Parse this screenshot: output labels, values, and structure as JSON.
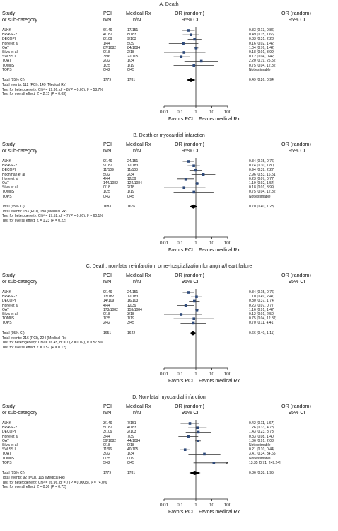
{
  "chart_data": [
    {
      "type": "forest",
      "title": "A. Death",
      "header": {
        "study": "Study",
        "subcat": "or sub-category",
        "pci": "PCI",
        "pci_n": "n/N",
        "med": "Medical Rx",
        "med_n": "n/N",
        "or": "OR (random)",
        "or_ci": "95% CI",
        "or2": "OR (random)",
        "or2_ci": "95% CI"
      },
      "studies": [
        {
          "name": "ALKK",
          "pci": "6/149",
          "med": "17/151",
          "or": 0.33,
          "lo": 0.13,
          "hi": 0.86,
          "text": "0.33 [0.13, 0.86]"
        },
        {
          "name": "BRAVE-2",
          "pci": "4/182",
          "med": "8/183",
          "or": 0.49,
          "lo": 0.15,
          "hi": 1.66,
          "text": "0.49 [0.15, 1.66]"
        },
        {
          "name": "DECOPI",
          "pci": "8/109",
          "med": "9/103",
          "or": 0.83,
          "lo": 0.31,
          "hi": 2.23,
          "text": "0.83 [0.31, 2.23]"
        },
        {
          "name": "Horie et al",
          "pci": "1/44",
          "med": "5/39",
          "or": 0.16,
          "lo": 0.02,
          "hi": 1.42,
          "text": "0.16 [0.02, 1.42]"
        },
        {
          "name": "OAT",
          "pci": "87/1082",
          "med": "84/1084",
          "or": 1.04,
          "lo": 0.76,
          "hi": 1.42,
          "text": "1.04 [0.76, 1.42]"
        },
        {
          "name": "Silva et al",
          "pci": "0/18",
          "med": "2/18",
          "or": 0.18,
          "lo": 0.01,
          "hi": 3.99,
          "text": "0.18 [0.01, 3.99]"
        },
        {
          "name": "SWISS II",
          "pci": "3/96",
          "med": "22/105",
          "or": 0.12,
          "lo": 0.04,
          "hi": 0.42,
          "text": "0.12 [0.04, 0.42]"
        },
        {
          "name": "TOAT",
          "pci": "2/32",
          "med": "1/34",
          "or": 2.2,
          "lo": 0.19,
          "hi": 25.52,
          "text": "2.20 [0.19, 25.52]"
        },
        {
          "name": "TOMIIS",
          "pci": "1/25",
          "med": "1/19",
          "or": 0.75,
          "lo": 0.04,
          "hi": 12.82,
          "text": "0.75 [0.04, 12.82]"
        },
        {
          "name": "TOPS",
          "pci": "0/42",
          "med": "0/45",
          "or": null,
          "lo": null,
          "hi": null,
          "text": "Not estimable"
        }
      ],
      "total": {
        "label": "Total (95% CI)",
        "pci": "1779",
        "med": "1781",
        "or": 0.49,
        "lo": 0.26,
        "hi": 0.94,
        "text": "0.49 [0.26, 0.94]"
      },
      "events": "Total events: 112 (PCI), 149 (Medical Rx)",
      "heterogeneity": "Test for heterogeneity: Chi² = 19.36, df = 8 (P = 0.01), I² = 58.7%",
      "overall": "Test for overall effect: Z = 2.15 (P = 0.03)",
      "xticks": [
        "0.01",
        "0.1",
        "1",
        "10",
        "100"
      ],
      "xtick_values": [
        0.01,
        0.1,
        1,
        10,
        100
      ],
      "favors_left": "Favors PCI",
      "favors_right": "Favors medical Rx",
      "xscale": "log",
      "xlim": [
        0.01,
        100
      ]
    },
    {
      "type": "forest",
      "title": "B. Death or myocardial infarction",
      "header": {
        "study": "Study",
        "subcat": "or sub-category",
        "pci": "PCI",
        "pci_n": "n/N",
        "med": "Medical Rx",
        "med_n": "n/N",
        "or": "OR (random)",
        "or_ci": "95% CI",
        "or2": "OR (random)",
        "or2_ci": "95% CI"
      },
      "studies": [
        {
          "name": "ALKK",
          "pci": "9/149",
          "med": "24/151",
          "or": 0.34,
          "lo": 0.15,
          "hi": 0.76,
          "text": "0.34 [0.15, 0.76]"
        },
        {
          "name": "BRAVE-2",
          "pci": "9/182",
          "med": "12/183",
          "or": 0.74,
          "lo": 0.3,
          "hi": 1.8,
          "text": "0.74 [0.30, 1.80]"
        },
        {
          "name": "DECOPI",
          "pci": "11/109",
          "med": "11/103",
          "or": 0.94,
          "lo": 0.39,
          "hi": 2.27,
          "text": "0.94 [0.39, 2.27]"
        },
        {
          "name": "Hochman et al",
          "pci": "5/32",
          "med": "2/34",
          "or": 2.96,
          "lo": 0.53,
          "hi": 16.51,
          "text": "2.96 [0.53, 16.51]"
        },
        {
          "name": "Horie et al",
          "pci": "4/44",
          "med": "12/39",
          "or": 0.23,
          "lo": 0.07,
          "hi": 0.77,
          "text": "0.23 [0.07, 0.77]"
        },
        {
          "name": "OAT",
          "pci": "144/1082",
          "med": "124/1084",
          "or": 1.19,
          "lo": 0.92,
          "hi": 1.54,
          "text": "1.19 [0.92, 1.54]"
        },
        {
          "name": "Silva et al",
          "pci": "0/18",
          "med": "2/18",
          "or": 0.18,
          "lo": 0.01,
          "hi": 3.99,
          "text": "0.18 [0.01, 3.99]"
        },
        {
          "name": "TOMIIS",
          "pci": "1/25",
          "med": "1/19",
          "or": 0.75,
          "lo": 0.04,
          "hi": 12.82,
          "text": "0.75 [0.04, 12.82]"
        },
        {
          "name": "TOPS",
          "pci": "0/42",
          "med": "0/45",
          "or": null,
          "lo": null,
          "hi": null,
          "text": "Not estimable"
        }
      ],
      "total": {
        "label": "Total (95% CI)",
        "pci": "1683",
        "med": "1676",
        "or": 0.7,
        "lo": 0.4,
        "hi": 1.23,
        "text": "0.70 [0.40, 1.23]"
      },
      "events": "Total events: 183 (PCI), 188 (Medical Rx)",
      "heterogeneity": "Test for heterogeneity: Chi² = 17.52, df = 7 (P = 0.01), I² = 60.1%",
      "overall": "Test for overall effect: Z = 1.23 (P = 0.22)",
      "xticks": [
        "0.01",
        "0.1",
        "1",
        "10",
        "100"
      ],
      "xtick_values": [
        0.01,
        0.1,
        1,
        10,
        100
      ],
      "favors_left": "Favors PCI",
      "favors_right": "Favors medical Rx",
      "xscale": "log",
      "xlim": [
        0.01,
        100
      ]
    },
    {
      "type": "forest",
      "title": "C. Death, non-fatal re-infarction, or re-hospitalization for angina/heart failure",
      "header": {
        "study": "Study",
        "subcat": "or sub-category",
        "pci": "PCI",
        "pci_n": "n/N",
        "med": "Medical Rx",
        "med_n": "n/N",
        "or": "OR (random)",
        "or_ci": "95% CI",
        "or2": "OR (random)",
        "or2_ci": "95% CI"
      },
      "studies": [
        {
          "name": "ALKK",
          "pci": "9/149",
          "med": "24/151",
          "or": 0.34,
          "lo": 0.15,
          "hi": 0.76,
          "text": "0.34 [0.15, 0.76]"
        },
        {
          "name": "BRAVE-2",
          "pci": "13/182",
          "med": "12/183",
          "or": 1.1,
          "lo": 0.49,
          "hi": 2.47,
          "text": "1.10 [0.49, 2.47]"
        },
        {
          "name": "DECOPI",
          "pci": "14/109",
          "med": "16/103",
          "or": 0.8,
          "lo": 0.37,
          "hi": 1.74,
          "text": "0.80 [0.37, 1.74]"
        },
        {
          "name": "Horie et al",
          "pci": "4/44",
          "med": "12/39",
          "or": 0.23,
          "lo": 0.07,
          "hi": 0.77,
          "text": "0.23 [0.07, 0.77]"
        },
        {
          "name": "OAT",
          "pci": "173/1082",
          "med": "153/1084",
          "or": 1.16,
          "lo": 0.91,
          "hi": 1.47,
          "text": "1.16 [0.91, 1.47]"
        },
        {
          "name": "Silva et al",
          "pci": "0/18",
          "med": "3/18",
          "or": 0.12,
          "lo": 0.01,
          "hi": 2.5,
          "text": "0.12 [0.01, 2.50]"
        },
        {
          "name": "TOMIIS",
          "pci": "1/25",
          "med": "1/19",
          "or": 0.75,
          "lo": 0.04,
          "hi": 12.82,
          "text": "0.75 [0.04, 12.82]"
        },
        {
          "name": "TOPS",
          "pci": "2/42",
          "med": "3/45",
          "or": 0.7,
          "lo": 0.11,
          "hi": 4.41,
          "text": "0.70 [0.11, 4.41]"
        }
      ],
      "total": {
        "label": "Total (95% CI)",
        "pci": "1651",
        "med": "1642",
        "or": 0.66,
        "lo": 0.4,
        "hi": 1.11,
        "text": "0.66 [0.40, 1.11]"
      },
      "events": "Total events: 216 (PCI), 224 (Medical Rx)",
      "heterogeneity": "Test for heterogeneity: Chi² = 16.45, df = 7 (P = 0.02), I² = 57.5%",
      "overall": "Test for overall effect: Z = 1.57 (P = 0.12)",
      "xticks": [
        "0.01",
        "0.1",
        "1",
        "10",
        "100"
      ],
      "xtick_values": [
        0.01,
        0.1,
        1,
        10,
        100
      ],
      "favors_left": "Favors PCI",
      "favors_right": "Favors medical Rx",
      "xscale": "log",
      "xlim": [
        0.01,
        100
      ]
    },
    {
      "type": "forest",
      "title": "D. Non-fatal myocardial infarction",
      "header": {
        "study": "Study",
        "subcat": "or sub-category",
        "pci": "PCI",
        "pci_n": "n/N",
        "med": "Medical Rx",
        "med_n": "n/N",
        "or": "OR (random)",
        "or_ci": "95% CI",
        "or2": "OR (random)",
        "or2_ci": "95% CI"
      },
      "studies": [
        {
          "name": "ALKK",
          "pci": "3/149",
          "med": "7/151",
          "or": 0.42,
          "lo": 0.11,
          "hi": 1.67,
          "text": "0.42 [0.11, 1.67]"
        },
        {
          "name": "BRAVE-2",
          "pci": "5/182",
          "med": "4/183",
          "or": 1.26,
          "lo": 0.33,
          "hi": 4.78,
          "text": "1.26 [0.33, 4.78]"
        },
        {
          "name": "DECOPI",
          "pci": "3/109",
          "med": "2/103",
          "or": 1.43,
          "lo": 0.23,
          "hi": 8.73,
          "text": "1.43 [0.23, 8.73]"
        },
        {
          "name": "Horie et al",
          "pci": "3/44",
          "med": "7/39",
          "or": 0.33,
          "lo": 0.08,
          "hi": 1.4,
          "text": "0.33 [0.08, 1.40]"
        },
        {
          "name": "OAT",
          "pci": "59/1082",
          "med": "44/1084",
          "or": 1.36,
          "lo": 0.91,
          "hi": 2.03,
          "text": "1.36 [0.91, 2.03]"
        },
        {
          "name": "Silva et al",
          "pci": "0/18",
          "med": "0/18",
          "or": null,
          "lo": null,
          "hi": null,
          "text": "Not estimable"
        },
        {
          "name": "SWISS II",
          "pci": "11/96",
          "med": "40/105",
          "or": 0.21,
          "lo": 0.1,
          "hi": 0.44,
          "text": "0.21 [0.10, 0.44]"
        },
        {
          "name": "TOAT",
          "pci": "3/32",
          "med": "1/34",
          "or": 3.41,
          "lo": 0.34,
          "hi": 34.65,
          "text": "3.41 [0.34, 34.65]"
        },
        {
          "name": "TOMIIS",
          "pci": "0/25",
          "med": "0/19",
          "or": null,
          "lo": null,
          "hi": null,
          "text": "Not estimable"
        },
        {
          "name": "TOPS",
          "pci": "5/42",
          "med": "0/45",
          "or": 13.35,
          "lo": 0.71,
          "hi": 249.24,
          "text": "13.35 [0.71, 249.24]"
        }
      ],
      "total": {
        "label": "Total (95% CI)",
        "pci": "1779",
        "med": "1781",
        "or": 0.86,
        "lo": 0.38,
        "hi": 1.95,
        "text": "0.86 [0.38, 1.95]"
      },
      "events": "Total events: 92 (PCI), 105 (Medical Rx)",
      "heterogeneity": "Test for heterogeneity: Chi² = 26.96, df = 7 (P = 0.0003), I² = 74.0%",
      "overall": "Test for overall effect: Z = 0.36 (P = 0.72)",
      "xticks": [
        "0.01",
        "0.1",
        "1",
        "10",
        "100"
      ],
      "xtick_values": [
        0.01,
        0.1,
        1,
        10,
        100
      ],
      "favors_left": "Favors PCI",
      "favors_right": "Favors medical Rx",
      "xscale": "log",
      "xlim": [
        0.01,
        100
      ]
    }
  ],
  "colors": {
    "marker": "#2e4a7a",
    "line": "#333333",
    "text": "#111111"
  }
}
